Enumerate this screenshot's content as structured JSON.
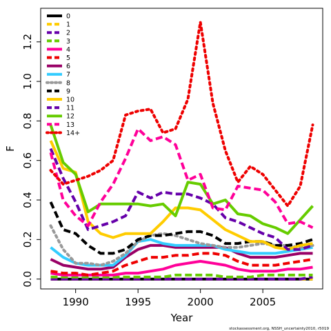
{
  "chart_data": {
    "type": "line",
    "title": "",
    "xlabel": "Year",
    "ylabel": "F",
    "xlim": [
      1987.2,
      2009.8
    ],
    "ylim": [
      -0.05,
      1.37
    ],
    "x_ticks": [
      1990,
      1995,
      2000,
      2005
    ],
    "y_ticks": [
      0.0,
      0.2,
      0.4,
      0.6,
      0.8,
      1.0,
      1.2
    ],
    "y_tick_labels": [
      "0.0",
      "0.2",
      "0.4",
      "0.6",
      "0.8",
      "1.0",
      "1.2"
    ],
    "legend_position": "top-left",
    "grid": false,
    "credit": "stockassessment.org, NSSH_uncertainty2010, r5019",
    "x": [
      1988,
      1989,
      1990,
      1991,
      1992,
      1993,
      1994,
      1995,
      1996,
      1997,
      1998,
      1999,
      2000,
      2001,
      2002,
      2003,
      2004,
      2005,
      2006,
      2007,
      2008,
      2009
    ],
    "series": [
      {
        "name": "0",
        "color": "#000000",
        "dash": "solid",
        "values": [
          0.0,
          0.0,
          0.0,
          0.0,
          0.0,
          0.0,
          0.0,
          0.0,
          0.0,
          0.0,
          0.0,
          0.0,
          0.0,
          0.0,
          0.0,
          0.0,
          0.0,
          0.0,
          0.0,
          0.0,
          0.0,
          0.0
        ]
      },
      {
        "name": "1",
        "color": "#FFCC00",
        "dash": "dash",
        "values": [
          0.0,
          0.0,
          0.0,
          0.0,
          0.0,
          0.0,
          0.0,
          0.0,
          0.0,
          0.0,
          0.0,
          0.0,
          0.0,
          0.0,
          0.0,
          0.0,
          0.0,
          0.0,
          0.0,
          0.0,
          0.0,
          0.0
        ]
      },
      {
        "name": "2",
        "color": "#6600AA",
        "dash": "dash",
        "values": [
          0.0,
          0.0,
          0.0,
          0.0,
          0.0,
          0.0,
          0.0,
          0.0,
          0.0,
          0.0,
          0.0,
          0.0,
          0.0,
          0.0,
          0.0,
          0.0,
          0.0,
          0.0,
          0.0,
          0.0,
          0.0,
          0.01
        ]
      },
      {
        "name": "3",
        "color": "#66CC00",
        "dash": "dash",
        "values": [
          0.01,
          0.01,
          0.01,
          0.01,
          0.01,
          0.01,
          0.01,
          0.01,
          0.01,
          0.01,
          0.02,
          0.02,
          0.02,
          0.02,
          0.01,
          0.01,
          0.01,
          0.02,
          0.02,
          0.02,
          0.02,
          0.02
        ]
      },
      {
        "name": "4",
        "color": "#FF0099",
        "dash": "solid",
        "values": [
          0.03,
          0.02,
          0.02,
          0.02,
          0.02,
          0.02,
          0.03,
          0.03,
          0.04,
          0.05,
          0.07,
          0.08,
          0.09,
          0.08,
          0.07,
          0.05,
          0.04,
          0.04,
          0.04,
          0.05,
          0.05,
          0.06
        ]
      },
      {
        "name": "5",
        "color": "#EE0000",
        "dash": "dash",
        "values": [
          0.04,
          0.03,
          0.03,
          0.02,
          0.03,
          0.04,
          0.07,
          0.09,
          0.11,
          0.11,
          0.12,
          0.12,
          0.13,
          0.13,
          0.12,
          0.09,
          0.07,
          0.07,
          0.07,
          0.08,
          0.09,
          0.1
        ]
      },
      {
        "name": "6",
        "color": "#990066",
        "dash": "solid",
        "values": [
          0.1,
          0.07,
          0.06,
          0.05,
          0.05,
          0.06,
          0.11,
          0.15,
          0.17,
          0.17,
          0.16,
          0.16,
          0.16,
          0.16,
          0.16,
          0.13,
          0.11,
          0.11,
          0.11,
          0.12,
          0.13,
          0.13
        ]
      },
      {
        "name": "7",
        "color": "#33CCFF",
        "dash": "solid",
        "values": [
          0.16,
          0.11,
          0.08,
          0.07,
          0.07,
          0.07,
          0.12,
          0.19,
          0.2,
          0.18,
          0.17,
          0.17,
          0.17,
          0.17,
          0.15,
          0.14,
          0.13,
          0.13,
          0.13,
          0.14,
          0.15,
          0.16
        ]
      },
      {
        "name": "8",
        "color": "#999999",
        "dash": "dot",
        "values": [
          0.27,
          0.15,
          0.08,
          0.08,
          0.07,
          0.09,
          0.13,
          0.19,
          0.22,
          0.23,
          0.22,
          0.2,
          0.18,
          0.17,
          0.16,
          0.16,
          0.17,
          0.18,
          0.17,
          0.17,
          0.16,
          0.17
        ]
      },
      {
        "name": "9",
        "color": "#000000",
        "dash": "dash",
        "values": [
          0.39,
          0.25,
          0.23,
          0.17,
          0.13,
          0.13,
          0.15,
          0.2,
          0.22,
          0.22,
          0.23,
          0.24,
          0.24,
          0.22,
          0.18,
          0.18,
          0.19,
          0.19,
          0.17,
          0.17,
          0.18,
          0.2
        ]
      },
      {
        "name": "10",
        "color": "#FFCC00",
        "dash": "solid",
        "values": [
          0.7,
          0.56,
          0.54,
          0.29,
          0.23,
          0.21,
          0.23,
          0.23,
          0.23,
          0.29,
          0.36,
          0.36,
          0.35,
          0.3,
          0.25,
          0.22,
          0.19,
          0.19,
          0.16,
          0.15,
          0.17,
          0.18
        ]
      },
      {
        "name": "11",
        "color": "#6600AA",
        "dash": "dash",
        "values": [
          0.66,
          0.51,
          0.39,
          0.25,
          0.27,
          0.29,
          0.32,
          0.44,
          0.41,
          0.44,
          0.43,
          0.43,
          0.41,
          0.38,
          0.31,
          0.29,
          0.26,
          0.23,
          0.21,
          0.15,
          0.15,
          0.17
        ]
      },
      {
        "name": "12",
        "color": "#66CC00",
        "dash": "solid",
        "values": [
          0.78,
          0.59,
          0.53,
          0.34,
          0.38,
          0.38,
          0.38,
          0.38,
          0.37,
          0.38,
          0.32,
          0.49,
          0.48,
          0.38,
          0.4,
          0.33,
          0.32,
          0.28,
          0.26,
          0.23,
          0.3,
          0.37
        ]
      },
      {
        "name": "13",
        "color": "#FF0099",
        "dash": "dash",
        "values": [
          0.64,
          0.4,
          0.32,
          0.27,
          0.39,
          0.48,
          0.61,
          0.76,
          0.7,
          0.72,
          0.68,
          0.5,
          0.53,
          0.36,
          0.35,
          0.47,
          0.46,
          0.45,
          0.39,
          0.28,
          0.29,
          0.26
        ]
      },
      {
        "name": "14+",
        "color": "#EE0000",
        "dash": "dot",
        "values": [
          0.55,
          0.48,
          0.5,
          0.52,
          0.55,
          0.6,
          0.83,
          0.85,
          0.86,
          0.74,
          0.76,
          0.91,
          1.3,
          0.89,
          0.65,
          0.49,
          0.57,
          0.53,
          0.45,
          0.37,
          0.47,
          0.78
        ]
      }
    ]
  }
}
